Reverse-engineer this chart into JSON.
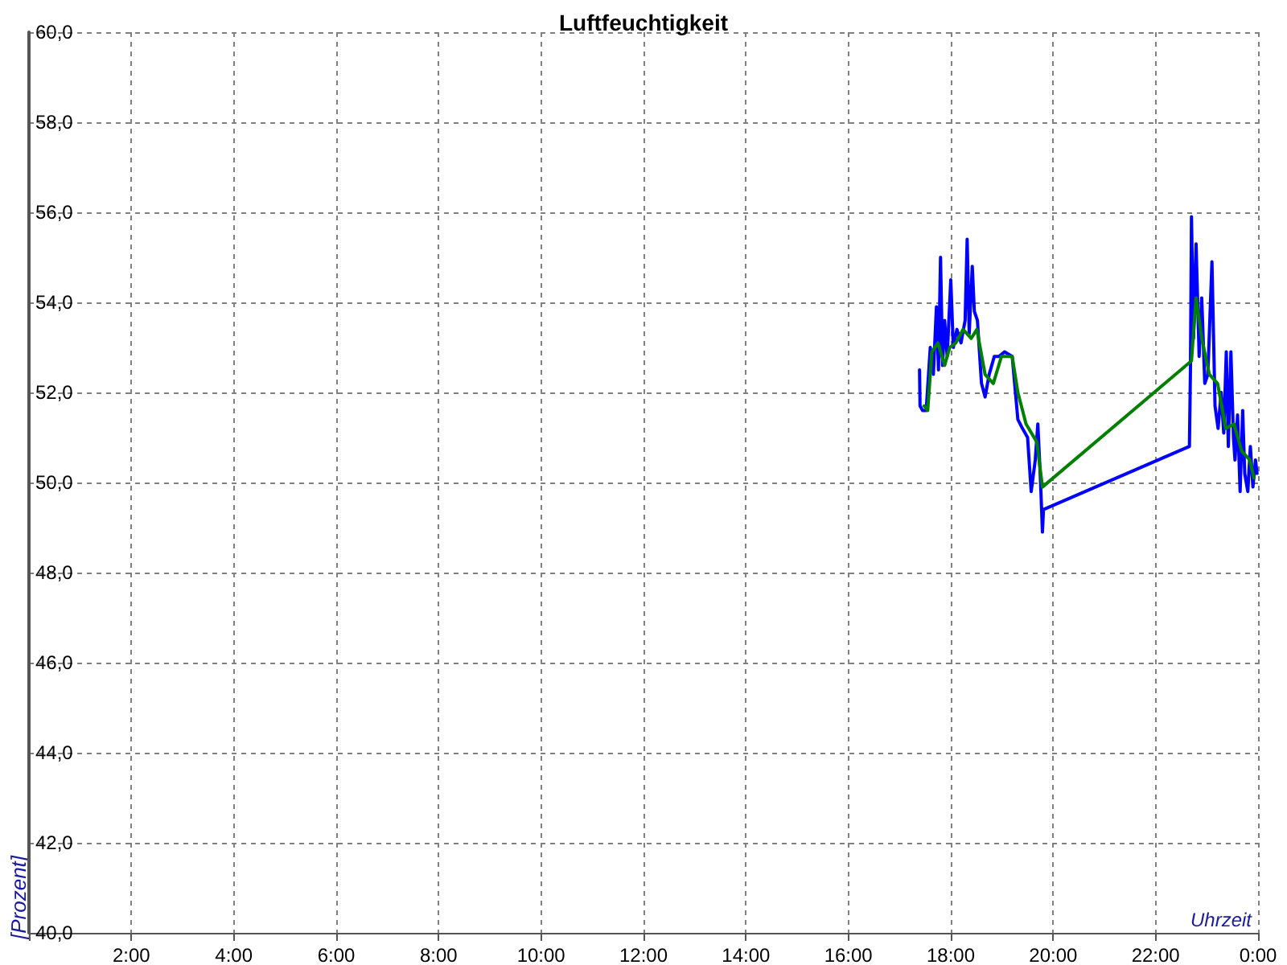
{
  "chart_data": {
    "type": "line",
    "title": "Luftfeuchtigkeit",
    "xlabel": "Uhrzeit",
    "ylabel": "[Prozent]",
    "xlim": [
      0,
      24
    ],
    "ylim": [
      40,
      60
    ],
    "xticks": [
      {
        "value": 0,
        "label": null
      },
      {
        "value": 2,
        "label": "2:00"
      },
      {
        "value": 4,
        "label": "4:00"
      },
      {
        "value": 6,
        "label": "6:00"
      },
      {
        "value": 8,
        "label": "8:00"
      },
      {
        "value": 10,
        "label": "10:00"
      },
      {
        "value": 12,
        "label": "12:00"
      },
      {
        "value": 14,
        "label": "14:00"
      },
      {
        "value": 16,
        "label": "16:00"
      },
      {
        "value": 18,
        "label": "18:00"
      },
      {
        "value": 20,
        "label": "20:00"
      },
      {
        "value": 22,
        "label": "22:00"
      },
      {
        "value": 24,
        "label": "0:00"
      }
    ],
    "yticks": [
      {
        "value": 40,
        "label": "40,0"
      },
      {
        "value": 42,
        "label": "42,0"
      },
      {
        "value": 44,
        "label": "44,0"
      },
      {
        "value": 46,
        "label": "46,0"
      },
      {
        "value": 48,
        "label": "48,0"
      },
      {
        "value": 50,
        "label": "50,0"
      },
      {
        "value": 52,
        "label": "52,0"
      },
      {
        "value": 54,
        "label": "54,0"
      },
      {
        "value": 56,
        "label": "56,0"
      },
      {
        "value": 58,
        "label": "58,0"
      },
      {
        "value": 60,
        "label": "60,0"
      }
    ],
    "grid": true,
    "marker": "none",
    "line_style": "solid",
    "series": [
      {
        "color": "#0000ff",
        "x": [
          17.39,
          17.4,
          17.45,
          17.52,
          17.6,
          17.66,
          17.72,
          17.76,
          17.8,
          17.84,
          17.88,
          17.93,
          18.0,
          18.05,
          18.12,
          18.2,
          18.28,
          18.32,
          18.36,
          18.42,
          18.46,
          18.52,
          18.6,
          18.67,
          18.75,
          18.85,
          18.94,
          19.05,
          19.2,
          19.31,
          19.4,
          19.5,
          19.57,
          19.65,
          19.7,
          19.75,
          19.79,
          19.81,
          22.66,
          22.68,
          22.7,
          22.74,
          22.79,
          22.85,
          22.9,
          22.96,
          23.02,
          23.1,
          23.16,
          23.22,
          23.28,
          23.33,
          23.38,
          23.42,
          23.47,
          23.52,
          23.55,
          23.6,
          23.65,
          23.7,
          23.74,
          23.8,
          23.85,
          23.9,
          23.95,
          23.98
        ],
        "values": [
          52.5,
          51.7,
          51.6,
          51.6,
          53.0,
          52.4,
          53.9,
          52.5,
          55.0,
          52.6,
          53.6,
          52.8,
          54.5,
          53.0,
          53.4,
          53.1,
          53.6,
          55.4,
          53.3,
          54.8,
          53.8,
          53.6,
          52.2,
          51.9,
          52.4,
          52.8,
          52.8,
          52.9,
          52.8,
          51.4,
          51.2,
          51.0,
          49.8,
          50.5,
          51.3,
          50.1,
          48.9,
          49.4,
          50.8,
          52.5,
          55.9,
          53.2,
          55.3,
          52.8,
          54.1,
          52.2,
          52.4,
          54.9,
          51.7,
          51.2,
          52.0,
          51.1,
          52.9,
          50.8,
          52.9,
          51.0,
          50.5,
          51.5,
          49.8,
          51.6,
          50.2,
          49.8,
          50.8,
          49.9,
          50.5,
          50.2
        ]
      },
      {
        "color": "#008000",
        "x": [
          17.48,
          17.55,
          17.63,
          17.75,
          17.88,
          17.98,
          18.1,
          18.24,
          18.4,
          18.51,
          18.67,
          18.83,
          18.99,
          19.2,
          19.31,
          19.47,
          19.68,
          19.79,
          22.7,
          22.79,
          22.9,
          23.05,
          23.21,
          23.37,
          23.53,
          23.68,
          23.84,
          23.92
        ],
        "values": [
          51.7,
          51.6,
          52.9,
          53.1,
          52.6,
          53.0,
          53.1,
          53.4,
          53.2,
          53.4,
          52.4,
          52.2,
          52.8,
          52.8,
          52.0,
          51.3,
          50.9,
          49.9,
          52.7,
          54.1,
          53.2,
          52.4,
          52.2,
          51.2,
          51.3,
          50.7,
          50.5,
          50.1
        ]
      }
    ]
  }
}
